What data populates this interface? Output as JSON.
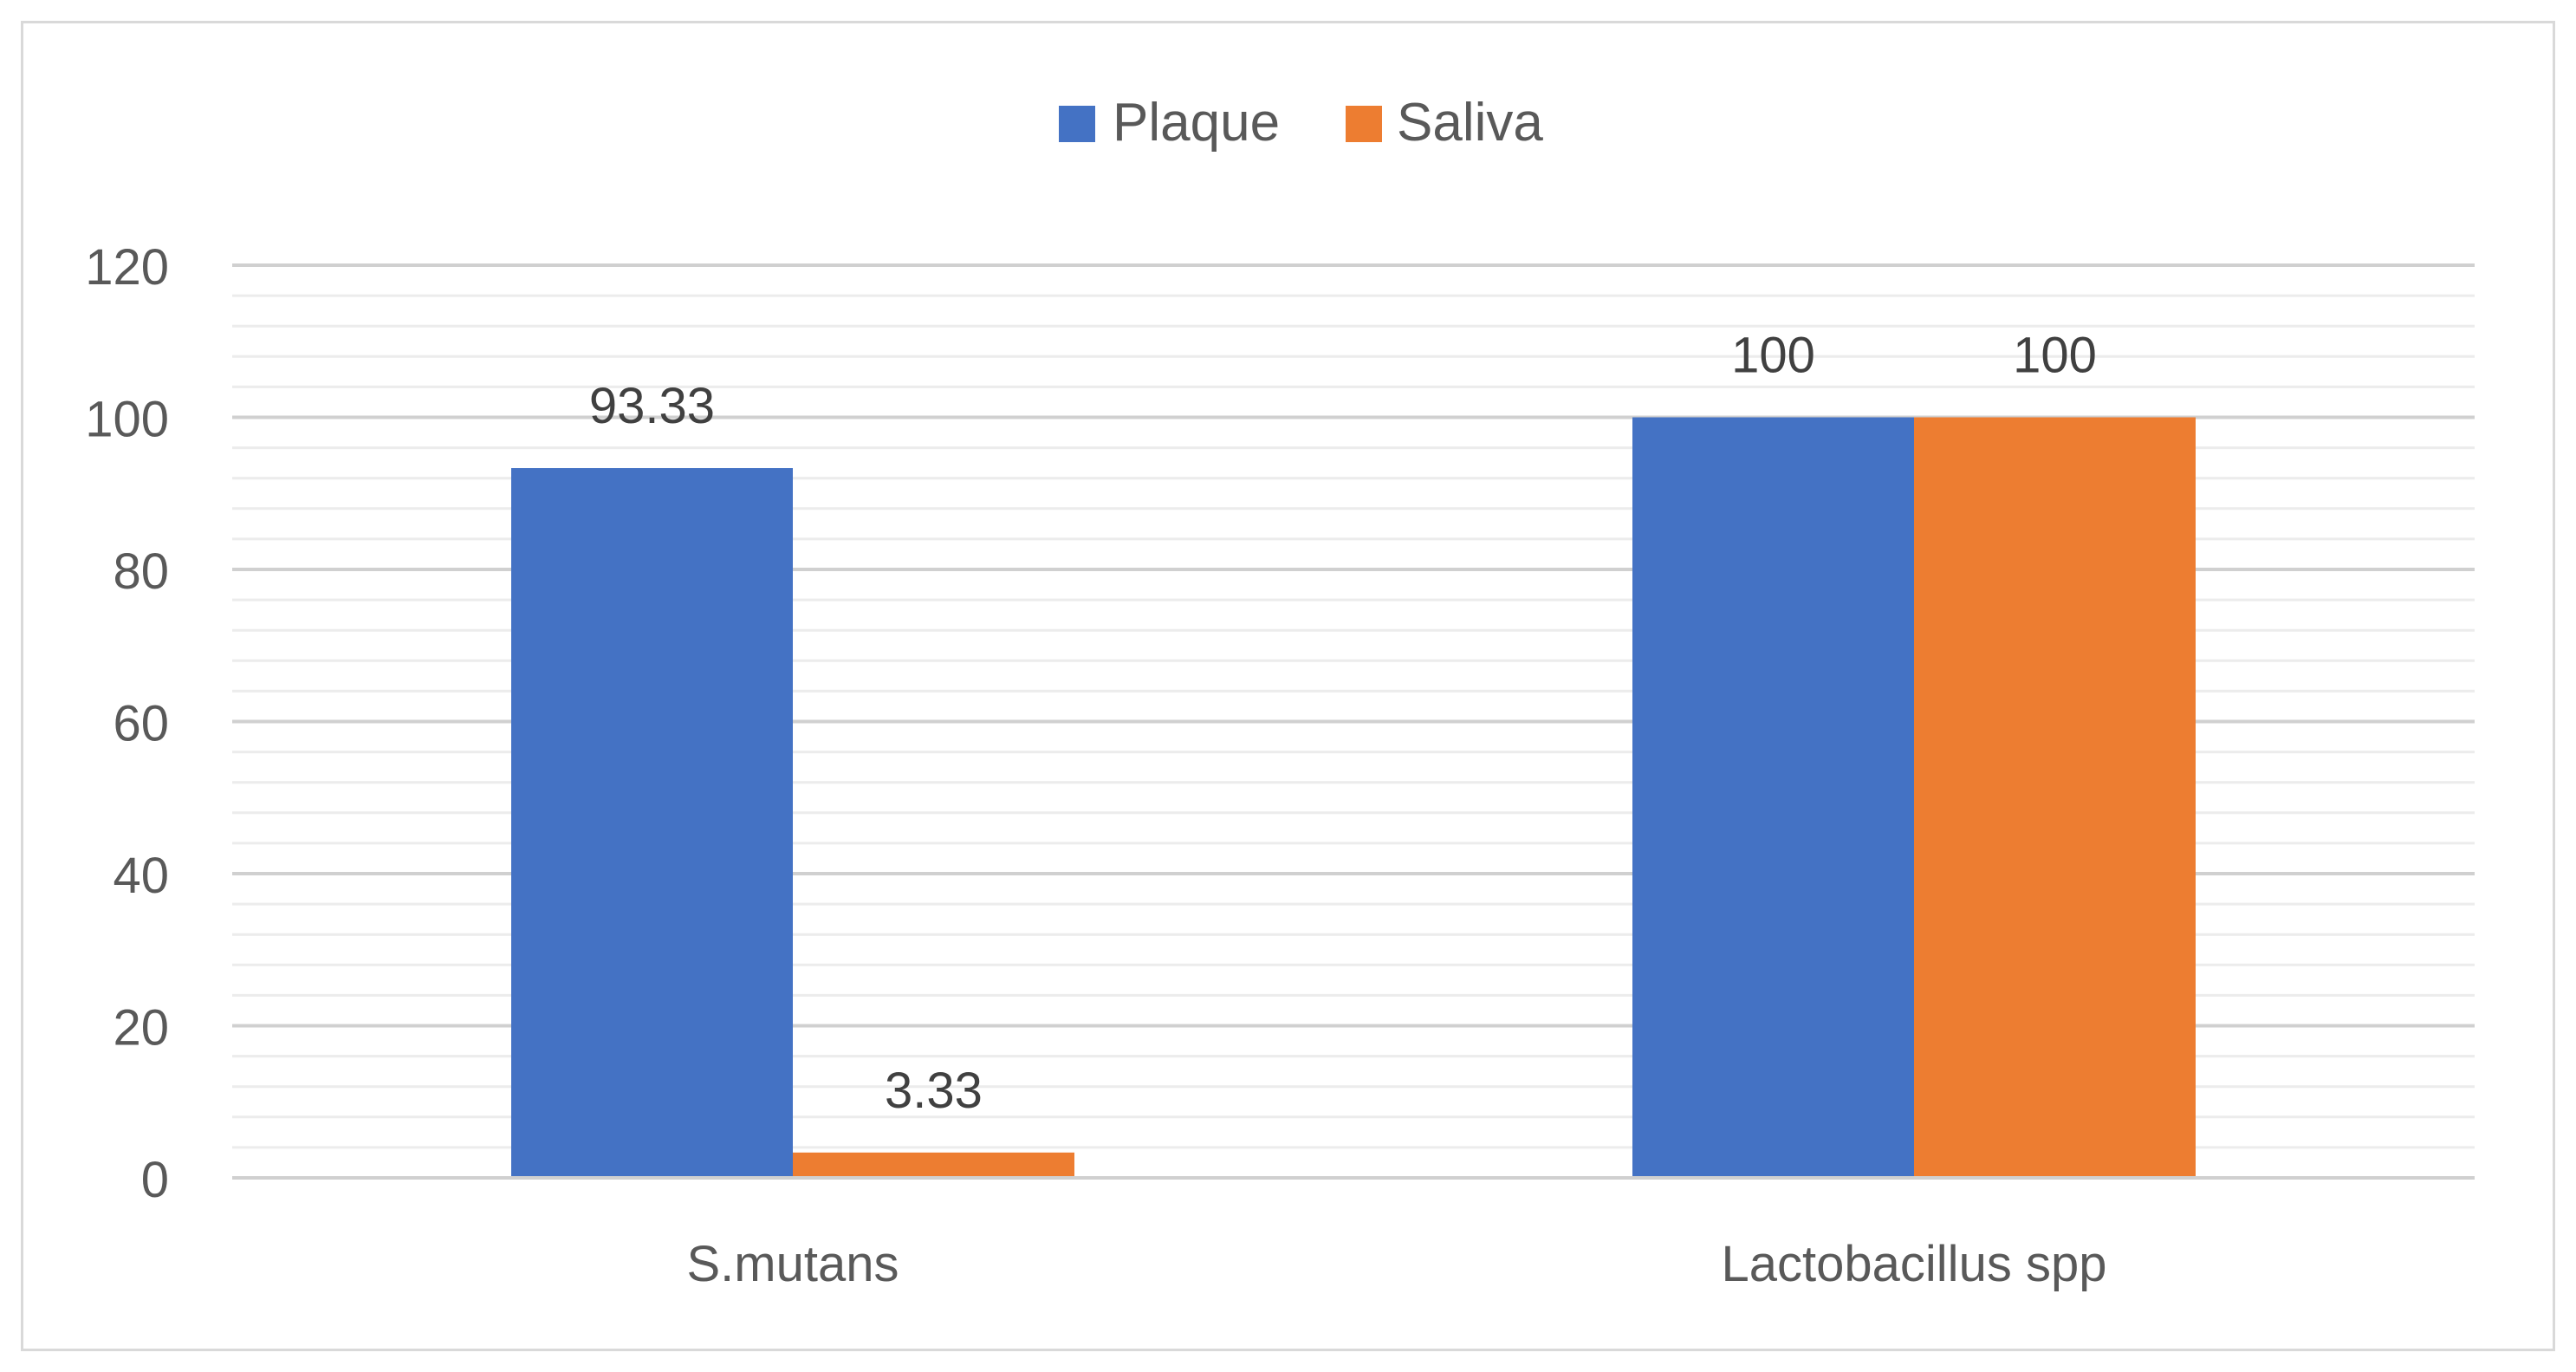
{
  "chart_data": {
    "type": "bar",
    "categories": [
      "S.mutans",
      "Lactobacillus spp"
    ],
    "series": [
      {
        "name": "Plaque",
        "values": [
          93.33,
          100
        ],
        "labels": [
          "93.33",
          "100"
        ],
        "color": "#4472C4"
      },
      {
        "name": "Saliva",
        "values": [
          3.33,
          100
        ],
        "labels": [
          "3.33",
          "100"
        ],
        "color": "#ED7D31"
      }
    ],
    "y_ticks": [
      "0",
      "20",
      "40",
      "60",
      "80",
      "100",
      "120"
    ],
    "ylim": [
      0,
      120
    ],
    "grid": true,
    "legend_position": "top"
  }
}
